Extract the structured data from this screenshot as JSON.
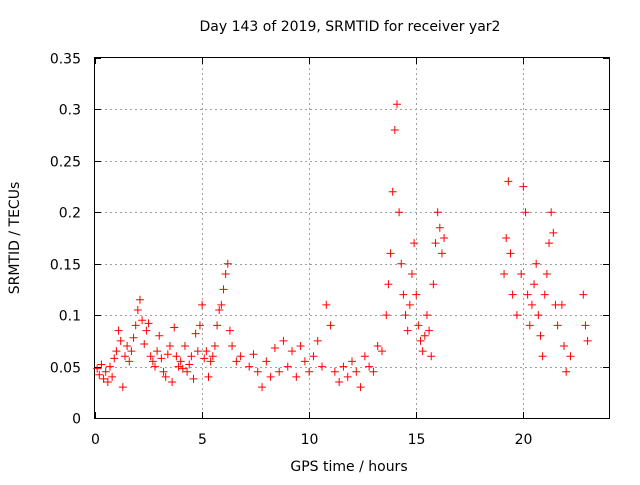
{
  "chart_data": {
    "type": "scatter",
    "title": "Day 143 of 2019, SRMTID for receiver yar2",
    "xlabel": "GPS time / hours",
    "ylabel": "SRMTID / TECUs",
    "xlim": [
      0,
      24
    ],
    "ylim": [
      0,
      0.35
    ],
    "x_ticks": [
      0,
      5,
      10,
      15,
      20
    ],
    "x_tick_labels": [
      "0",
      "5",
      "10",
      "15",
      "20"
    ],
    "y_ticks": [
      0,
      0.05,
      0.1,
      0.15,
      0.2,
      0.25,
      0.3,
      0.35
    ],
    "y_tick_labels": [
      "0",
      "0.05",
      "0.1",
      "0.15",
      "0.2",
      "0.25",
      "0.3",
      "0.35"
    ],
    "grid": true,
    "marker": "+",
    "series": [
      {
        "name": "SRMTID",
        "color": "#ff0000",
        "points": [
          [
            0.1,
            0.048
          ],
          [
            0.2,
            0.042
          ],
          [
            0.3,
            0.052
          ],
          [
            0.4,
            0.038
          ],
          [
            0.5,
            0.045
          ],
          [
            0.6,
            0.035
          ],
          [
            0.7,
            0.05
          ],
          [
            0.8,
            0.04
          ],
          [
            0.9,
            0.058
          ],
          [
            1.0,
            0.065
          ],
          [
            1.1,
            0.085
          ],
          [
            1.2,
            0.075
          ],
          [
            1.3,
            0.03
          ],
          [
            1.4,
            0.06
          ],
          [
            1.5,
            0.07
          ],
          [
            1.6,
            0.055
          ],
          [
            1.7,
            0.065
          ],
          [
            1.8,
            0.078
          ],
          [
            1.9,
            0.09
          ],
          [
            2.0,
            0.105
          ],
          [
            2.1,
            0.115
          ],
          [
            2.2,
            0.095
          ],
          [
            2.3,
            0.072
          ],
          [
            2.4,
            0.085
          ],
          [
            2.5,
            0.092
          ],
          [
            2.6,
            0.06
          ],
          [
            2.7,
            0.055
          ],
          [
            2.8,
            0.05
          ],
          [
            2.9,
            0.065
          ],
          [
            3.0,
            0.08
          ],
          [
            3.1,
            0.058
          ],
          [
            3.2,
            0.045
          ],
          [
            3.3,
            0.04
          ],
          [
            3.4,
            0.062
          ],
          [
            3.5,
            0.07
          ],
          [
            3.6,
            0.035
          ],
          [
            3.7,
            0.088
          ],
          [
            3.8,
            0.06
          ],
          [
            3.9,
            0.05
          ],
          [
            4.0,
            0.055
          ],
          [
            4.1,
            0.048
          ],
          [
            4.2,
            0.07
          ],
          [
            4.3,
            0.045
          ],
          [
            4.4,
            0.052
          ],
          [
            4.5,
            0.06
          ],
          [
            4.6,
            0.038
          ],
          [
            4.7,
            0.082
          ],
          [
            4.8,
            0.065
          ],
          [
            4.9,
            0.09
          ],
          [
            5.0,
            0.11
          ],
          [
            5.1,
            0.058
          ],
          [
            5.2,
            0.065
          ],
          [
            5.3,
            0.04
          ],
          [
            5.4,
            0.055
          ],
          [
            5.5,
            0.06
          ],
          [
            5.6,
            0.07
          ],
          [
            5.7,
            0.09
          ],
          [
            5.8,
            0.105
          ],
          [
            5.9,
            0.11
          ],
          [
            6.0,
            0.125
          ],
          [
            6.1,
            0.14
          ],
          [
            6.2,
            0.15
          ],
          [
            6.3,
            0.085
          ],
          [
            6.4,
            0.07
          ],
          [
            6.6,
            0.055
          ],
          [
            6.8,
            0.06
          ],
          [
            7.2,
            0.05
          ],
          [
            7.4,
            0.062
          ],
          [
            7.6,
            0.045
          ],
          [
            7.8,
            0.03
          ],
          [
            8.0,
            0.055
          ],
          [
            8.2,
            0.04
          ],
          [
            8.4,
            0.068
          ],
          [
            8.6,
            0.045
          ],
          [
            8.8,
            0.075
          ],
          [
            9.0,
            0.05
          ],
          [
            9.2,
            0.065
          ],
          [
            9.4,
            0.04
          ],
          [
            9.6,
            0.07
          ],
          [
            9.8,
            0.055
          ],
          [
            10.0,
            0.045
          ],
          [
            10.2,
            0.06
          ],
          [
            10.4,
            0.075
          ],
          [
            10.6,
            0.05
          ],
          [
            10.8,
            0.11
          ],
          [
            11.0,
            0.09
          ],
          [
            11.2,
            0.045
          ],
          [
            11.4,
            0.035
          ],
          [
            11.6,
            0.05
          ],
          [
            11.8,
            0.04
          ],
          [
            12.0,
            0.055
          ],
          [
            12.2,
            0.045
          ],
          [
            12.4,
            0.03
          ],
          [
            12.6,
            0.06
          ],
          [
            12.8,
            0.05
          ],
          [
            13.0,
            0.045
          ],
          [
            13.2,
            0.07
          ],
          [
            13.4,
            0.065
          ],
          [
            13.6,
            0.1
          ],
          [
            13.7,
            0.13
          ],
          [
            13.8,
            0.16
          ],
          [
            13.9,
            0.22
          ],
          [
            14.0,
            0.28
          ],
          [
            14.1,
            0.305
          ],
          [
            14.2,
            0.2
          ],
          [
            14.3,
            0.15
          ],
          [
            14.4,
            0.12
          ],
          [
            14.5,
            0.1
          ],
          [
            14.6,
            0.085
          ],
          [
            14.7,
            0.11
          ],
          [
            14.8,
            0.14
          ],
          [
            14.9,
            0.17
          ],
          [
            15.0,
            0.12
          ],
          [
            15.1,
            0.09
          ],
          [
            15.2,
            0.075
          ],
          [
            15.3,
            0.065
          ],
          [
            15.4,
            0.08
          ],
          [
            15.5,
            0.1
          ],
          [
            15.6,
            0.085
          ],
          [
            15.7,
            0.06
          ],
          [
            15.8,
            0.13
          ],
          [
            15.9,
            0.17
          ],
          [
            16.0,
            0.2
          ],
          [
            16.1,
            0.185
          ],
          [
            16.2,
            0.16
          ],
          [
            16.3,
            0.175
          ],
          [
            19.1,
            0.14
          ],
          [
            19.2,
            0.175
          ],
          [
            19.3,
            0.23
          ],
          [
            19.4,
            0.16
          ],
          [
            19.5,
            0.12
          ],
          [
            19.7,
            0.1
          ],
          [
            19.9,
            0.14
          ],
          [
            20.0,
            0.225
          ],
          [
            20.1,
            0.2
          ],
          [
            20.2,
            0.12
          ],
          [
            20.3,
            0.09
          ],
          [
            20.4,
            0.11
          ],
          [
            20.5,
            0.13
          ],
          [
            20.6,
            0.15
          ],
          [
            20.7,
            0.1
          ],
          [
            20.8,
            0.08
          ],
          [
            20.9,
            0.06
          ],
          [
            21.0,
            0.12
          ],
          [
            21.1,
            0.14
          ],
          [
            21.2,
            0.17
          ],
          [
            21.3,
            0.2
          ],
          [
            21.4,
            0.18
          ],
          [
            21.5,
            0.11
          ],
          [
            21.6,
            0.09
          ],
          [
            21.8,
            0.11
          ],
          [
            21.9,
            0.07
          ],
          [
            22.0,
            0.045
          ],
          [
            22.2,
            0.06
          ],
          [
            22.8,
            0.12
          ],
          [
            22.9,
            0.09
          ],
          [
            23.0,
            0.075
          ]
        ]
      }
    ]
  }
}
